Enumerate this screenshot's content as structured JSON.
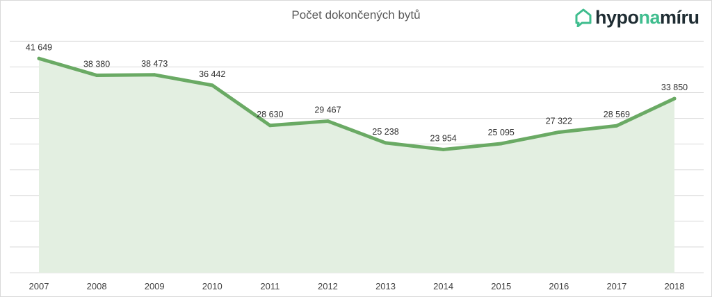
{
  "chart_data": {
    "type": "area",
    "title": "Počet dokončených bytů",
    "categories": [
      "2007",
      "2008",
      "2009",
      "2010",
      "2011",
      "2012",
      "2013",
      "2014",
      "2015",
      "2016",
      "2017",
      "2018"
    ],
    "series": [
      {
        "values": [
          41649,
          38380,
          38473,
          36442,
          28630,
          29467,
          25238,
          23954,
          25095,
          27322,
          28569,
          33850
        ],
        "labels": [
          "41 649",
          "38 380",
          "38 473",
          "36 442",
          "28 630",
          "29 467",
          "25 238",
          "23 954",
          "25 095",
          "27 322",
          "28 569",
          "33 850"
        ]
      }
    ],
    "ylim": [
      0,
      46000
    ],
    "grid": true,
    "legend": false,
    "colors": {
      "line": "#6aaa64",
      "fill": "#e3efe1",
      "grid": "#d9d9d9",
      "border": "#d9d9d9"
    }
  },
  "logo": {
    "part1": "hypo",
    "part2": "na",
    "part3": "míru"
  }
}
